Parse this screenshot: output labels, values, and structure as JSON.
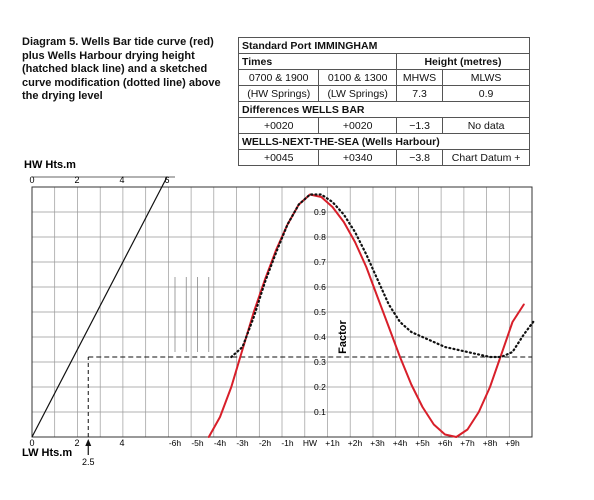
{
  "caption": "Diagram 5. Wells Bar tide curve (red) plus Wells Harbour drying height (hatched black line) and a sketched curve modification (dotted line) above the drying level",
  "table": {
    "standard_port": "Standard Port IMMINGHAM",
    "times_header": "Times",
    "height_header": "Height (metres)",
    "hw_time_1": "0700 & 1900",
    "lw_time_1": "0100 & 1300",
    "mhws": "MHWS",
    "mlws": "MLWS",
    "hw_springs": "(HW Springs)",
    "lw_springs": "(LW Springs)",
    "mhws_value": "7.3",
    "mlws_value": "0.9",
    "differences_header": "Differences WELLS BAR",
    "wb_hw": "+0020",
    "wb_lw": "+0020",
    "wb_height": "−1.3",
    "wb_nodata": "No data",
    "wells_header": "WELLS-NEXT-THE-SEA (Wells Harbour)",
    "wh_hw": "+0045",
    "wh_lw": "+0340",
    "wh_height": "−3.8",
    "wh_datum": "Chart Datum +"
  },
  "chart_data": {
    "type": "line",
    "hw_axis_label": "HW Hts.m",
    "hw_ticks": [
      "0",
      "2",
      "4",
      "6"
    ],
    "lw_axis_label": "LW Hts.m",
    "lw_ticks": [
      "0",
      "2",
      "4"
    ],
    "lw_marker_label": "2.5",
    "lw_marker_value": 2.5,
    "x_ticks": [
      "-6h",
      "-5h",
      "-4h",
      "-3h",
      "-2h",
      "-1h",
      "HW",
      "+1h",
      "+2h",
      "+3h",
      "+4h",
      "+5h",
      "+6h",
      "+7h",
      "+8h",
      "+9h"
    ],
    "x_range_hours": [
      -6,
      9
    ],
    "ylabel": "Factor",
    "y_ticks": [
      "0.1",
      "0.2",
      "0.3",
      "0.4",
      "0.5",
      "0.6",
      "0.7",
      "0.8",
      "0.9"
    ],
    "ylim": [
      0,
      1.0
    ],
    "drying_height_factor": 0.32,
    "range_line": {
      "hw_height": [
        0,
        6
      ],
      "lw_height": [
        0,
        4
      ]
    },
    "series": [
      {
        "style": "solid-red",
        "color": "#d81f2a",
        "x": [
          -4.5,
          -4,
          -3.5,
          -3,
          -2.5,
          -2,
          -1.5,
          -1,
          -0.5,
          0,
          0.5,
          1,
          1.5,
          2,
          2.5,
          3,
          3.5,
          4,
          4.5,
          5,
          5.5,
          6,
          6.5,
          7,
          7.5,
          8,
          8.5,
          9,
          9.5
        ],
        "y": [
          0.0,
          0.08,
          0.2,
          0.35,
          0.5,
          0.63,
          0.75,
          0.85,
          0.93,
          0.97,
          0.96,
          0.92,
          0.86,
          0.78,
          0.68,
          0.56,
          0.44,
          0.32,
          0.21,
          0.12,
          0.05,
          0.01,
          0.0,
          0.03,
          0.1,
          0.2,
          0.33,
          0.46,
          0.53
        ]
      },
      {
        "style": "dotted",
        "color": "#111111",
        "x": [
          -3.5,
          -3,
          -2.5,
          -2,
          -1.5,
          -1,
          -0.5,
          0,
          0.5,
          1,
          1.5,
          2,
          2.5,
          3,
          3.5,
          4,
          4.5,
          5,
          5.5,
          6,
          6.5,
          7,
          7.5,
          8,
          8.5,
          9,
          9.5,
          10
        ],
        "y": [
          0.32,
          0.36,
          0.48,
          0.62,
          0.74,
          0.85,
          0.93,
          0.97,
          0.97,
          0.94,
          0.89,
          0.82,
          0.73,
          0.63,
          0.53,
          0.46,
          0.42,
          0.4,
          0.38,
          0.36,
          0.35,
          0.34,
          0.33,
          0.32,
          0.32,
          0.34,
          0.41,
          0.47
        ]
      }
    ]
  }
}
